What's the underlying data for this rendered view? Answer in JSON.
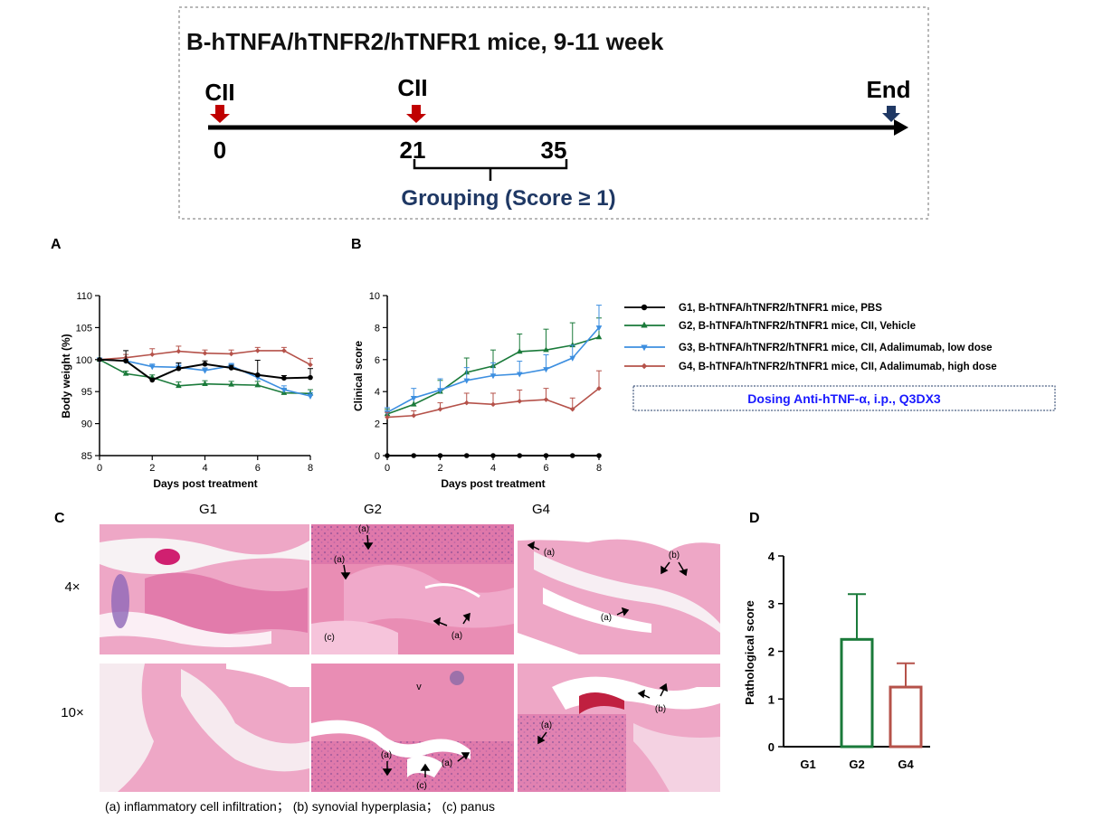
{
  "timeline": {
    "title": "B-hTNFA/hTNFR2/hTNFR1 mice,  9-11 week",
    "markers": [
      {
        "label": "CII",
        "day": "0",
        "color": "#c00000"
      },
      {
        "label": "CII",
        "day": "21",
        "color": "#c00000"
      },
      {
        "label": "End",
        "day": "",
        "color": "#1f3864"
      }
    ],
    "mid_tick": "35",
    "grouping_label": "Grouping (Score ≥ 1)",
    "grouping_color": "#1f3864"
  },
  "panel_labels": {
    "a": "A",
    "b": "B",
    "c": "C",
    "d": "D"
  },
  "legend": {
    "entries": [
      {
        "name": "G1, B-hTNFA/hTNFR2/hTNFR1 mice, PBS",
        "color": "#000000",
        "marker": "circle"
      },
      {
        "name": "G2, B-hTNFA/hTNFR2/hTNFR1 mice, CII, Vehicle",
        "color": "#1a7a3a",
        "marker": "triangle-up"
      },
      {
        "name": "G3, B-hTNFA/hTNFR2/hTNFR1 mice, CII, Adalimumab, low dose",
        "color": "#3d8fe0",
        "marker": "triangle-down"
      },
      {
        "name": "G4, B-hTNFA/hTNFR2/hTNFR1 mice, CII, Adalimumab, high dose",
        "color": "#b5524a",
        "marker": "diamond"
      }
    ],
    "dosing_note": "Dosing Anti-hTNF-α,  i.p.,  Q3DX3",
    "dosing_color": "#1a1aff"
  },
  "chart_data": [
    {
      "id": "A",
      "type": "line",
      "xlabel": "Days post treatment",
      "ylabel": "Body weight (%)",
      "xlim": [
        0,
        8
      ],
      "ylim": [
        85,
        110
      ],
      "xticks": [
        0,
        2,
        4,
        6,
        8
      ],
      "yticks": [
        85,
        90,
        95,
        100,
        105,
        110
      ],
      "x": [
        0,
        1,
        2,
        3,
        4,
        5,
        6,
        7,
        8
      ],
      "series": [
        {
          "name": "G1",
          "color": "#000000",
          "marker": "circle",
          "values": [
            100,
            99.8,
            96.8,
            98.6,
            99.3,
            98.7,
            97.6,
            97.1,
            97.2
          ],
          "errors": [
            0,
            1.6,
            0.3,
            0.9,
            0.5,
            0.4,
            2.3,
            0.4,
            1.4
          ]
        },
        {
          "name": "G2",
          "color": "#1a7a3a",
          "marker": "triangle-up",
          "values": [
            100,
            97.8,
            97.2,
            95.9,
            96.2,
            96.1,
            96.0,
            94.8,
            94.7
          ],
          "errors": [
            0,
            0.4,
            0.4,
            0.6,
            0.5,
            0.5,
            0.6,
            0.6,
            0.6
          ]
        },
        {
          "name": "G3",
          "color": "#3d8fe0",
          "marker": "triangle-down",
          "values": [
            100,
            99.8,
            98.9,
            98.8,
            98.3,
            99.0,
            97.2,
            95.3,
            94.3
          ],
          "errors": [
            0,
            0.5,
            0.4,
            0.5,
            0.4,
            0.4,
            0.5,
            0.6,
            0.5
          ]
        },
        {
          "name": "G4",
          "color": "#b5524a",
          "marker": "diamond",
          "values": [
            100,
            100.3,
            100.8,
            101.3,
            101.0,
            100.9,
            101.4,
            101.4,
            99.2
          ],
          "errors": [
            0,
            0.5,
            0.9,
            0.8,
            0.5,
            0.6,
            0.5,
            0.5,
            1.0
          ]
        }
      ]
    },
    {
      "id": "B",
      "type": "line",
      "xlabel": "Days post treatment",
      "ylabel": "Clinical score",
      "xlim": [
        0,
        8
      ],
      "ylim": [
        0,
        10
      ],
      "xticks": [
        0,
        2,
        4,
        6,
        8
      ],
      "yticks": [
        0,
        2,
        4,
        6,
        8,
        10
      ],
      "x": [
        0,
        1,
        2,
        3,
        4,
        5,
        6,
        7,
        8
      ],
      "series": [
        {
          "name": "G1",
          "color": "#000000",
          "marker": "circle",
          "values": [
            0,
            0,
            0,
            0,
            0,
            0,
            0,
            0,
            0
          ],
          "errors": [
            0,
            0,
            0,
            0,
            0,
            0,
            0,
            0,
            0
          ]
        },
        {
          "name": "G2",
          "color": "#1a7a3a",
          "marker": "triangle-up",
          "values": [
            2.6,
            3.2,
            4.0,
            5.2,
            5.6,
            6.5,
            6.6,
            6.9,
            7.4
          ],
          "errors": [
            0.3,
            0.5,
            0.7,
            0.9,
            1.0,
            1.1,
            1.3,
            1.4,
            1.2
          ]
        },
        {
          "name": "G3",
          "color": "#3d8fe0",
          "marker": "triangle-down",
          "values": [
            2.7,
            3.6,
            4.1,
            4.7,
            5.0,
            5.1,
            5.4,
            6.1,
            8.0
          ],
          "errors": [
            0.3,
            0.6,
            0.7,
            0.8,
            0.8,
            0.8,
            0.9,
            0.8,
            1.4
          ]
        },
        {
          "name": "G4",
          "color": "#b5524a",
          "marker": "diamond",
          "values": [
            2.4,
            2.5,
            2.9,
            3.3,
            3.2,
            3.4,
            3.5,
            2.9,
            4.2
          ],
          "errors": [
            0.3,
            0.3,
            0.4,
            0.6,
            0.7,
            0.7,
            0.7,
            0.7,
            1.1
          ]
        }
      ]
    },
    {
      "id": "D",
      "type": "bar",
      "ylabel": "Pathological score",
      "categories": [
        "G1",
        "G2",
        "G4"
      ],
      "values": [
        0,
        2.25,
        1.25
      ],
      "errors": [
        0,
        0.95,
        0.5
      ],
      "colors": [
        "#000000",
        "#1a7a3a",
        "#b5524a"
      ],
      "ylim": [
        0,
        4
      ],
      "yticks": [
        0,
        1,
        2,
        3,
        4
      ]
    }
  ],
  "histology": {
    "group_labels": [
      "G1",
      "G2",
      "G4"
    ],
    "magnifications": [
      "4×",
      "10×"
    ],
    "annotations": {
      "g2_4x": [
        "(a)",
        "(a)",
        "(a)",
        "(c)"
      ],
      "g4_4x": [
        "(a)",
        "(b)",
        "(a)"
      ],
      "g2_10x": [
        "(a)",
        "(c)",
        "(a)",
        "v"
      ],
      "g4_10x": [
        "(b)",
        "(a)"
      ]
    },
    "caption": "(a) inflammatory cell infiltration； (b) synovial hyperplasia； (c) panus"
  }
}
